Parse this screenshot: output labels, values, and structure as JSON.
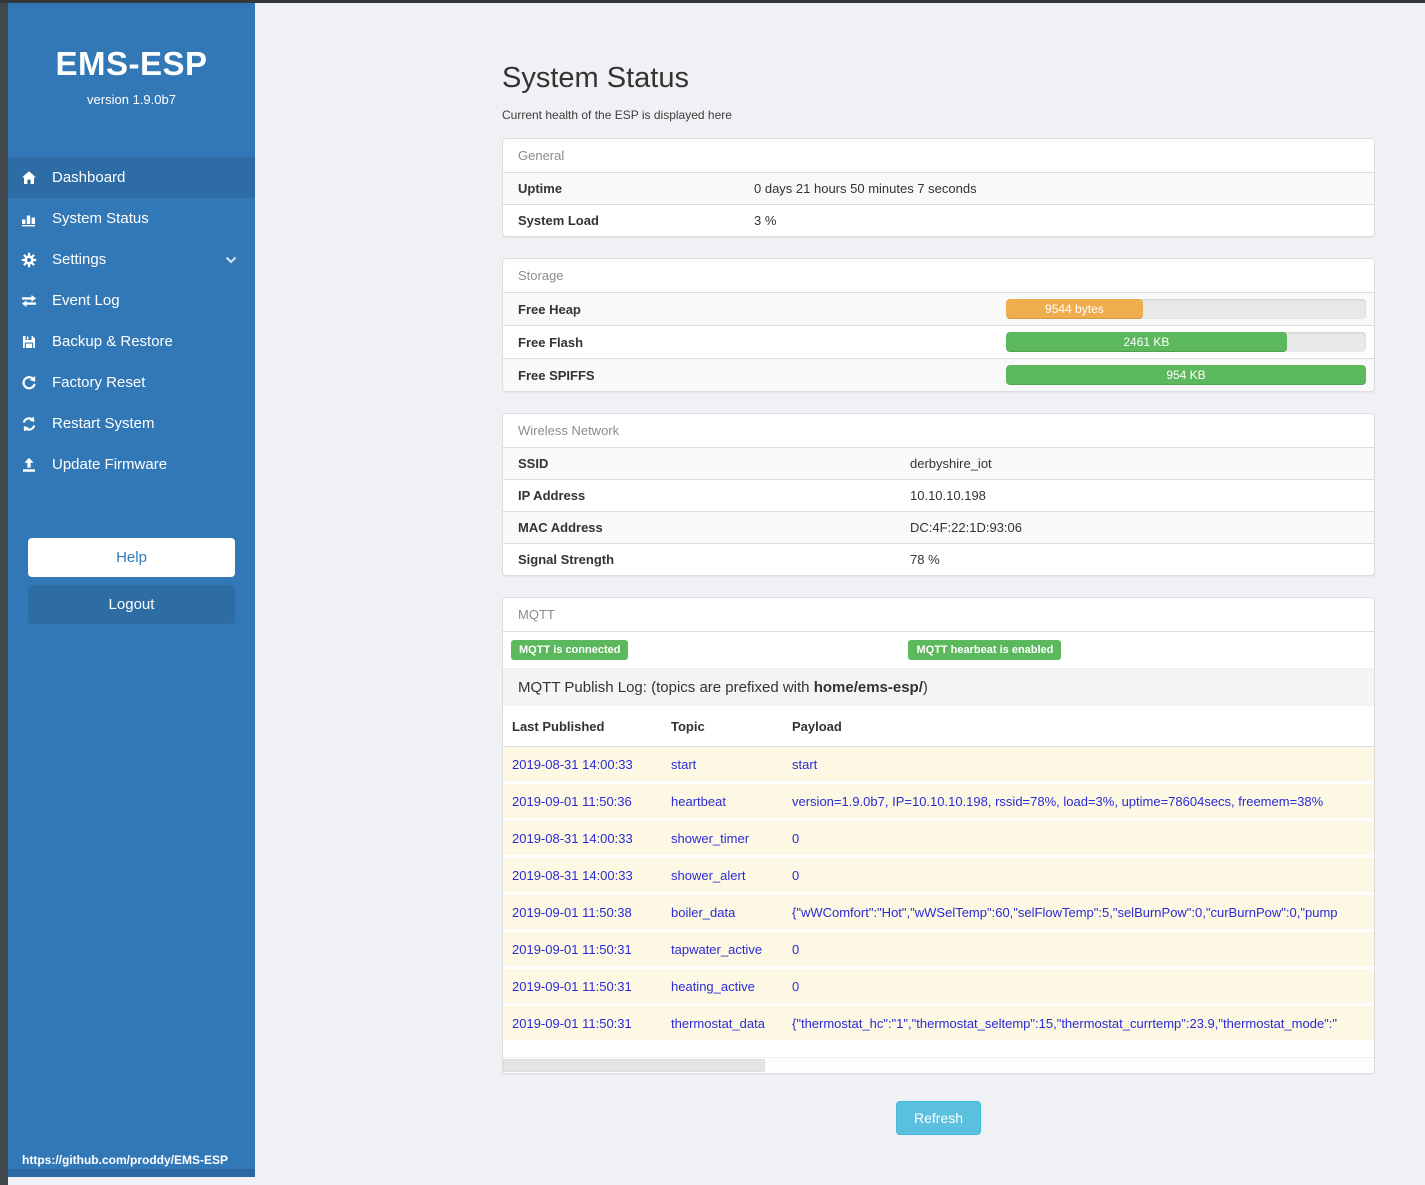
{
  "sidebar": {
    "title": "EMS-ESP",
    "version": "version 1.9.0b7",
    "items": [
      {
        "label": "Dashboard",
        "icon": "home-icon",
        "active": true
      },
      {
        "label": "System Status",
        "icon": "status-blocks-icon",
        "active": false
      },
      {
        "label": "Settings",
        "icon": "gear-icon",
        "active": false,
        "has_chevron": true
      },
      {
        "label": "Event Log",
        "icon": "exchange-icon",
        "active": false
      },
      {
        "label": "Backup & Restore",
        "icon": "save-icon",
        "active": false
      },
      {
        "label": "Factory Reset",
        "icon": "undo-icon",
        "active": false
      },
      {
        "label": "Restart System",
        "icon": "sync-icon",
        "active": false
      },
      {
        "label": "Update Firmware",
        "icon": "upload-icon",
        "active": false
      }
    ],
    "help_label": "Help",
    "logout_label": "Logout",
    "footer_link": "https://github.com/proddy/EMS-ESP"
  },
  "page": {
    "title": "System Status",
    "subtitle": "Current health of the ESP is displayed here"
  },
  "panels": {
    "general": {
      "title": "General",
      "rows": [
        {
          "label": "Uptime",
          "value": "0 days 21 hours 50 minutes 7 seconds"
        },
        {
          "label": "System Load",
          "value": "3 %"
        }
      ]
    },
    "storage": {
      "title": "Storage",
      "rows": [
        {
          "label": "Free Heap",
          "bar_label": "9544 bytes",
          "percent": 38,
          "color": "#f0ad4e"
        },
        {
          "label": "Free Flash",
          "bar_label": "2461 KB",
          "percent": 78,
          "color": "#5cb85c"
        },
        {
          "label": "Free SPIFFS",
          "bar_label": "954 KB",
          "percent": 100,
          "color": "#5cb85c"
        }
      ]
    },
    "wireless": {
      "title": "Wireless Network",
      "rows": [
        {
          "label": "SSID",
          "value": "derbyshire_iot"
        },
        {
          "label": "IP Address",
          "value": "10.10.10.198"
        },
        {
          "label": "MAC Address",
          "value": "DC:4F:22:1D:93:06"
        },
        {
          "label": "Signal Strength",
          "value": "78 %"
        }
      ]
    },
    "mqtt": {
      "title": "MQTT",
      "badges": [
        "MQTT is connected",
        "MQTT hearbeat is enabled"
      ],
      "publish_log": {
        "prefix": "MQTT Publish Log: (topics are prefixed with ",
        "bold": "home/ems-esp/",
        "suffix": ")"
      },
      "table": {
        "headers": [
          "Last Published",
          "Topic",
          "Payload"
        ],
        "rows": [
          [
            "2019-08-31 14:00:33",
            "start",
            "start"
          ],
          [
            "2019-09-01 11:50:36",
            "heartbeat",
            "version=1.9.0b7, IP=10.10.10.198, rssid=78%, load=3%, uptime=78604secs, freemem=38%"
          ],
          [
            "2019-08-31 14:00:33",
            "shower_timer",
            "0"
          ],
          [
            "2019-08-31 14:00:33",
            "shower_alert",
            "0"
          ],
          [
            "2019-09-01 11:50:38",
            "boiler_data",
            "{\"wWComfort\":\"Hot\",\"wWSelTemp\":60,\"selFlowTemp\":5,\"selBurnPow\":0,\"curBurnPow\":0,\"pump"
          ],
          [
            "2019-09-01 11:50:31",
            "tapwater_active",
            "0"
          ],
          [
            "2019-09-01 11:50:31",
            "heating_active",
            "0"
          ],
          [
            "2019-09-01 11:50:31",
            "thermostat_data",
            "{\"thermostat_hc\":\"1\",\"thermostat_seltemp\":15,\"thermostat_currtemp\":23.9,\"thermostat_mode\":\""
          ]
        ]
      }
    }
  },
  "refresh_label": "Refresh",
  "colors": {
    "sidebar": "#3378b6",
    "sidebar_active": "#2d6ca4",
    "success": "#5cb85c",
    "warning": "#f0ad4e",
    "info_button": "#5bc0de",
    "log_text": "#2b2bd5",
    "log_row_bg": "#fcf8e3"
  }
}
